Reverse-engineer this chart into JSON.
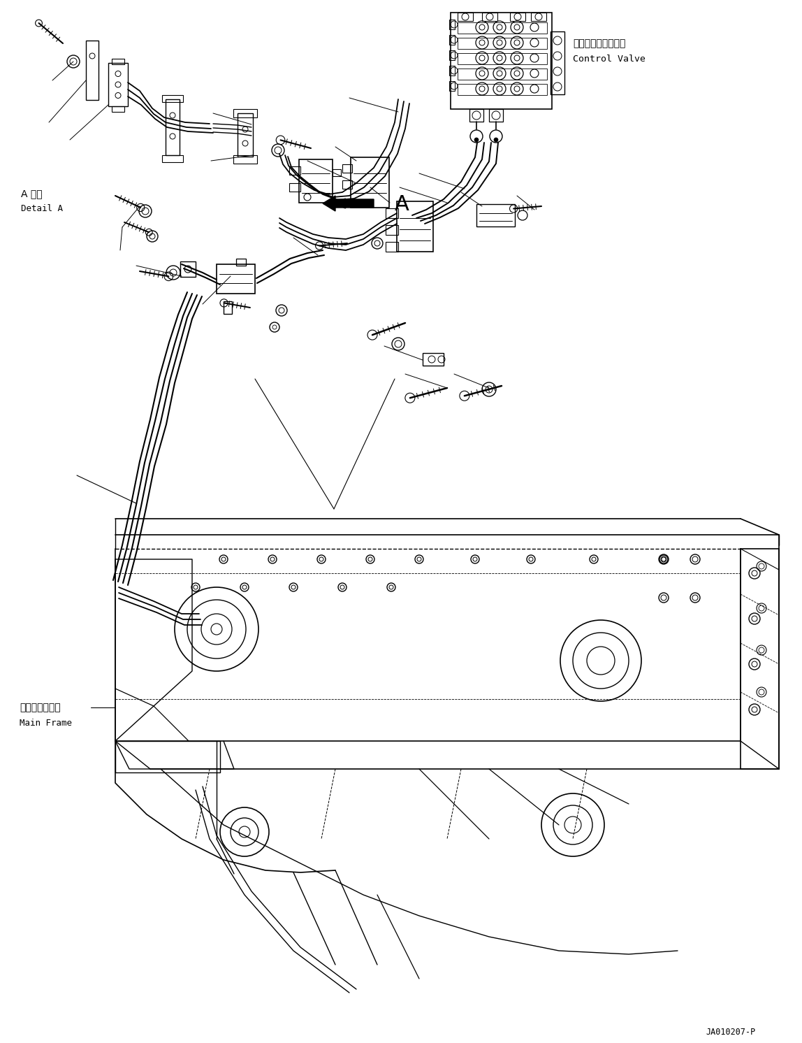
{
  "background_color": "#ffffff",
  "line_color": "#000000",
  "text_color": "#000000",
  "fig_width": 11.48,
  "fig_height": 14.92,
  "dpi": 100,
  "label_control_valve_jp": "コントロールバルブ",
  "label_control_valve_en": "Control Valve",
  "label_detail_a_jp": "A 詳細",
  "label_detail_a_en": "Detail A",
  "label_main_frame_jp": "メインフレーム",
  "label_main_frame_en": "Main Frame",
  "label_arrow_a": "A",
  "part_number": "JA010207-P",
  "title_fontsize": 9,
  "label_fontsize": 8,
  "part_number_fontsize": 8
}
